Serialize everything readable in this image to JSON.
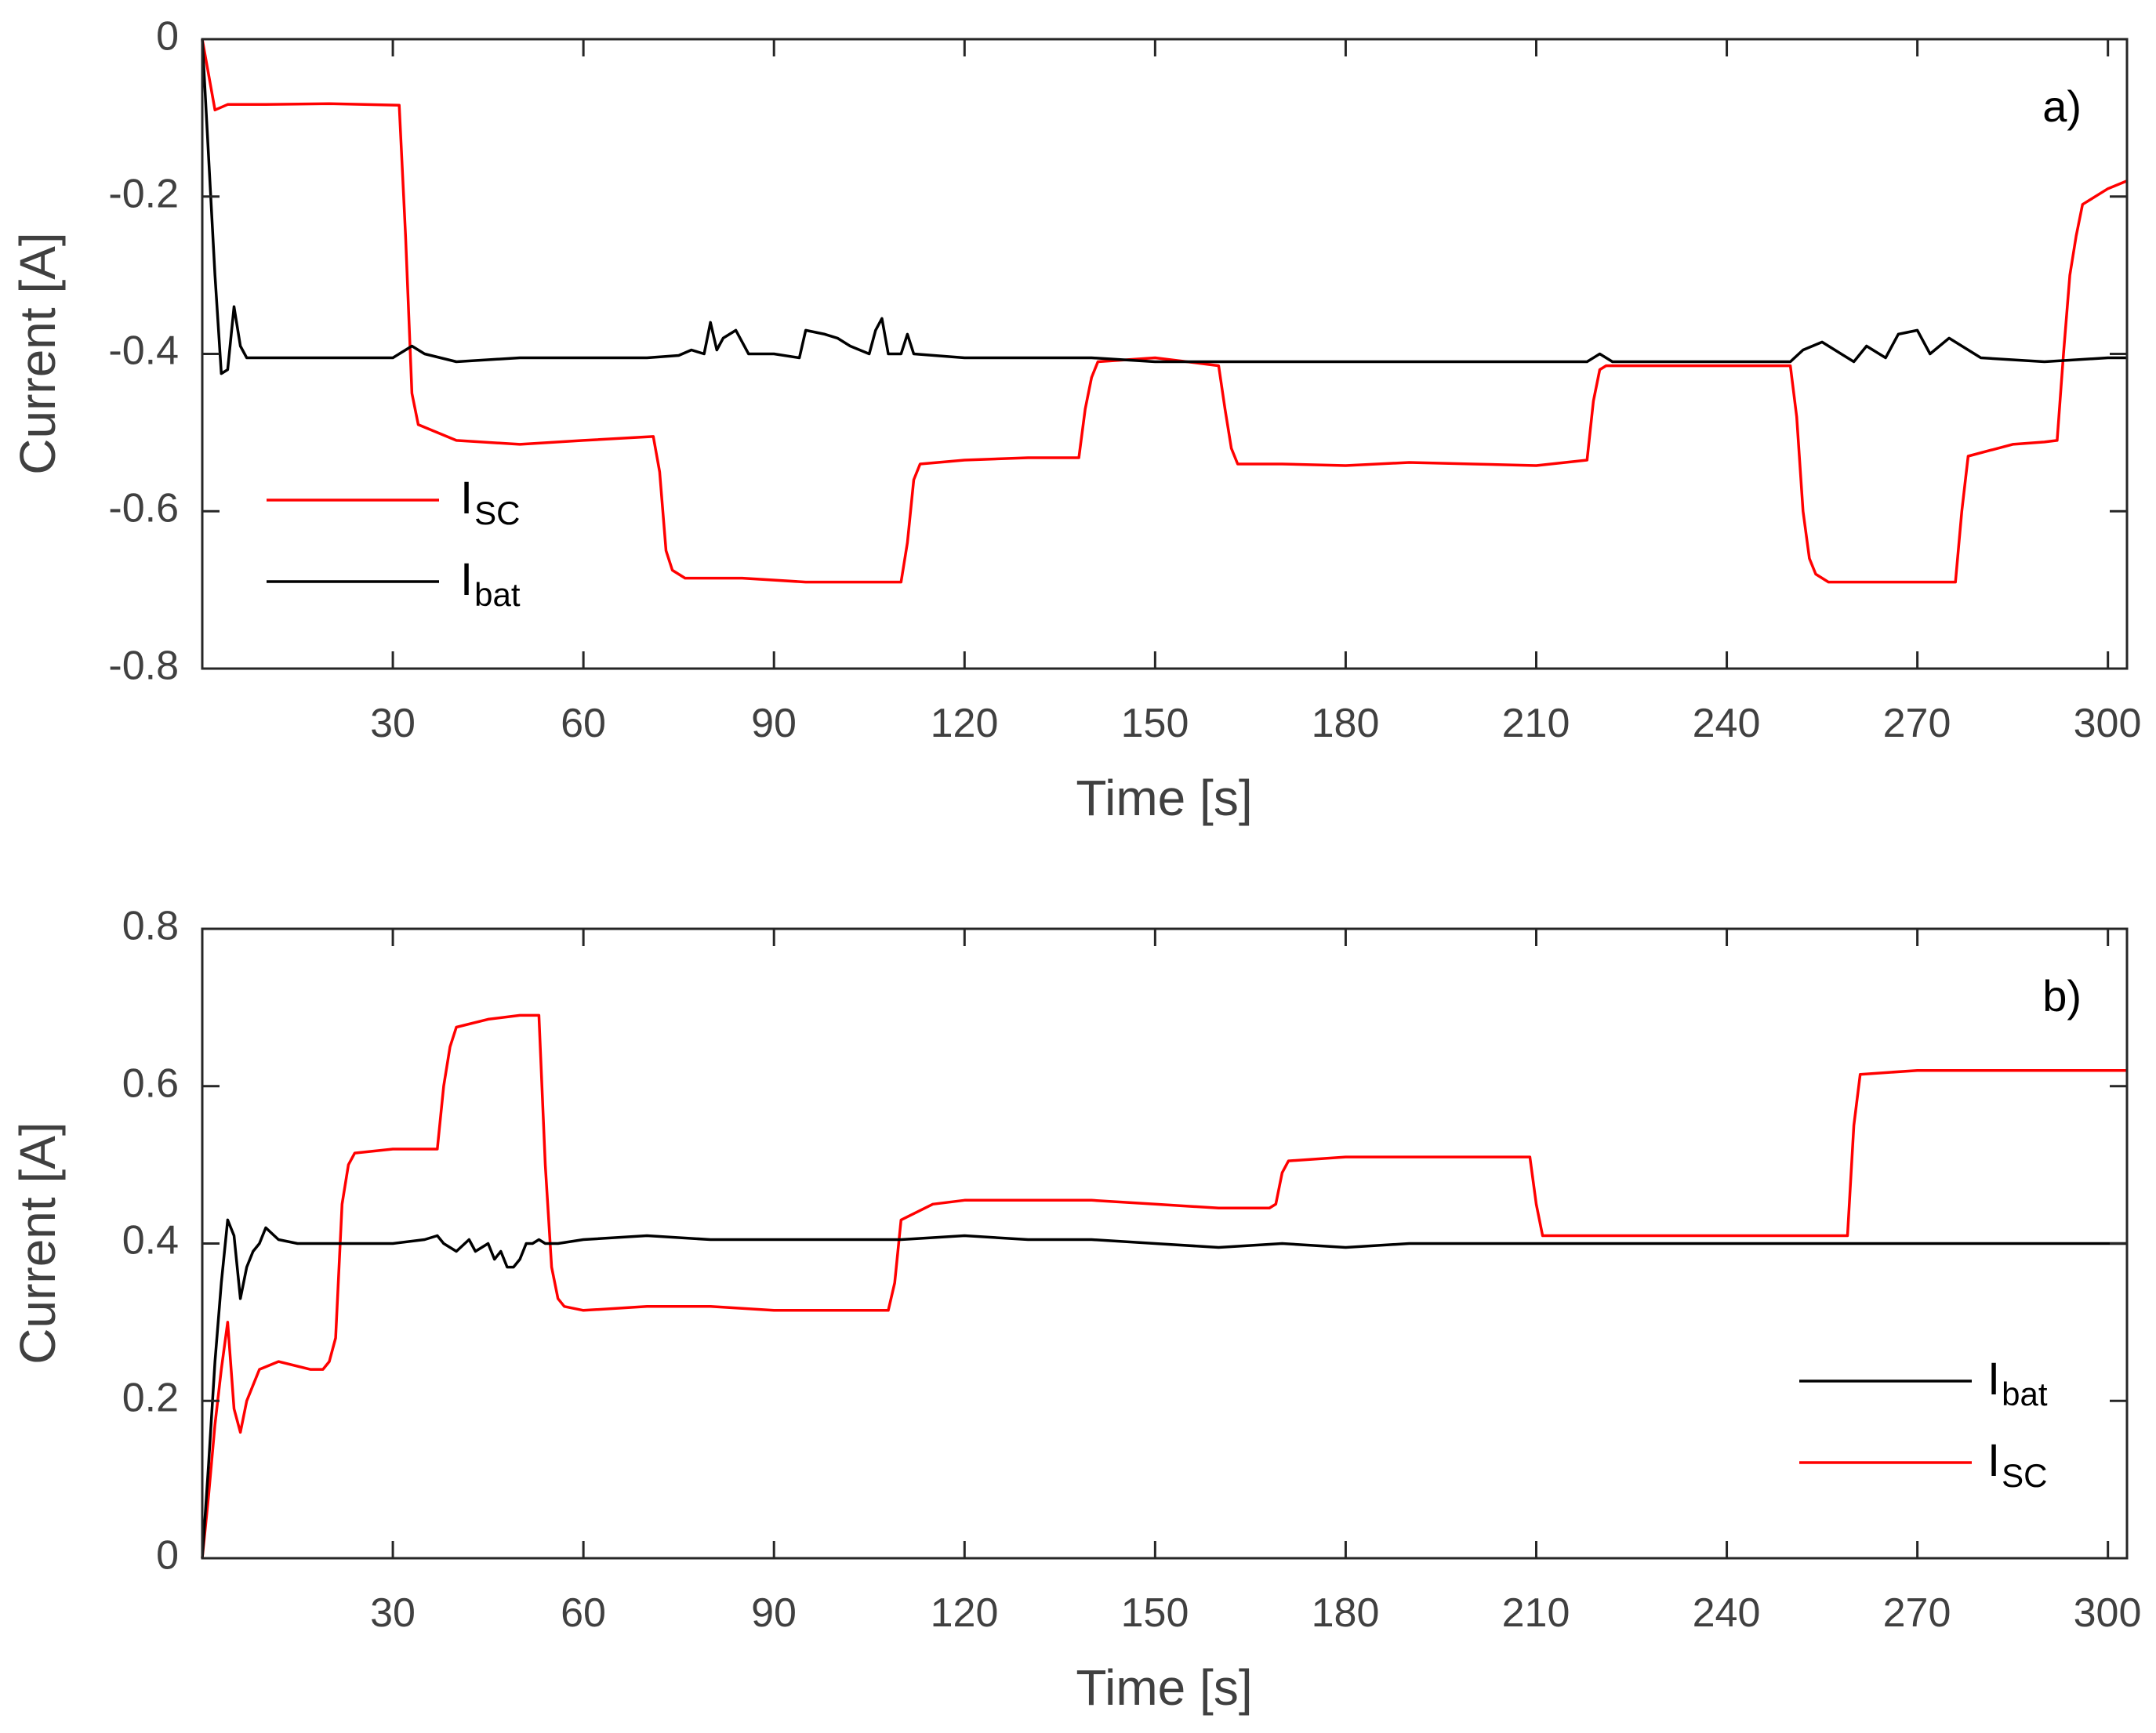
{
  "chart_data": [
    {
      "type": "line",
      "panel_label": "a)",
      "xlabel": "Time [s]",
      "ylabel": "Current [A]",
      "xlim": [
        0,
        303
      ],
      "ylim": [
        -0.8,
        0
      ],
      "xticks": [
        30,
        60,
        90,
        120,
        150,
        180,
        210,
        240,
        270,
        300
      ],
      "xtick_labels": [
        "30",
        "60",
        "90",
        "120",
        "150",
        "180",
        "210",
        "240",
        "270",
        "300"
      ],
      "yticks": [
        0,
        -0.2,
        -0.4,
        -0.6,
        -0.8
      ],
      "ytick_labels": [
        "0",
        "-0.2",
        "-0.4",
        "-0.6",
        "-0.8"
      ],
      "grid": false,
      "legend_position": "left",
      "legend": [
        {
          "main": "I",
          "sub": "SC",
          "color": "#ff0000"
        },
        {
          "main": "I",
          "sub": "bat",
          "color": "#000000"
        }
      ],
      "series": [
        {
          "name": "ISC",
          "color": "#ff0000",
          "x": [
            0,
            2,
            4,
            10,
            20,
            31,
            32,
            33,
            34,
            40,
            50,
            60,
            71,
            72,
            73,
            74,
            76,
            85,
            95,
            105,
            110,
            111,
            112,
            113,
            120,
            130,
            138,
            139,
            140,
            141,
            150,
            155,
            160,
            161,
            162,
            163,
            170,
            180,
            190,
            200,
            210,
            218,
            219,
            220,
            221,
            230,
            240,
            250,
            251,
            252,
            253,
            254,
            256,
            265,
            275,
            276,
            277,
            278,
            285,
            290,
            292,
            293,
            294,
            295,
            296,
            300,
            303
          ],
          "values": [
            0,
            -0.09,
            -0.083,
            -0.083,
            -0.082,
            -0.084,
            -0.25,
            -0.45,
            -0.49,
            -0.51,
            -0.515,
            -0.51,
            -0.505,
            -0.55,
            -0.65,
            -0.675,
            -0.685,
            -0.685,
            -0.69,
            -0.69,
            -0.69,
            -0.64,
            -0.56,
            -0.54,
            -0.535,
            -0.532,
            -0.532,
            -0.47,
            -0.43,
            -0.41,
            -0.405,
            -0.41,
            -0.415,
            -0.47,
            -0.52,
            -0.54,
            -0.54,
            -0.542,
            -0.538,
            -0.54,
            -0.542,
            -0.535,
            -0.46,
            -0.42,
            -0.415,
            -0.415,
            -0.415,
            -0.415,
            -0.48,
            -0.6,
            -0.66,
            -0.68,
            -0.69,
            -0.69,
            -0.69,
            -0.69,
            -0.6,
            -0.53,
            -0.515,
            -0.512,
            -0.51,
            -0.4,
            -0.3,
            -0.25,
            -0.21,
            -0.19,
            -0.18
          ]
        },
        {
          "name": "Ibat",
          "color": "#000000",
          "x": [
            0,
            1,
            2,
            3,
            4,
            5,
            6,
            7,
            10,
            20,
            30,
            32,
            33,
            35,
            40,
            50,
            60,
            70,
            75,
            77,
            79,
            80,
            81,
            82,
            84,
            86,
            90,
            94,
            95,
            98,
            100,
            102,
            105,
            106,
            107,
            108,
            110,
            111,
            112,
            120,
            130,
            140,
            150,
            160,
            170,
            180,
            190,
            200,
            210,
            218,
            220,
            222,
            230,
            240,
            250,
            252,
            255,
            258,
            260,
            262,
            265,
            267,
            270,
            272,
            275,
            280,
            290,
            300,
            303
          ],
          "values": [
            0,
            -0.15,
            -0.3,
            -0.425,
            -0.42,
            -0.34,
            -0.39,
            -0.405,
            -0.405,
            -0.405,
            -0.405,
            -0.395,
            -0.39,
            -0.4,
            -0.41,
            -0.405,
            -0.405,
            -0.405,
            -0.402,
            -0.395,
            -0.4,
            -0.36,
            -0.395,
            -0.38,
            -0.37,
            -0.4,
            -0.4,
            -0.405,
            -0.37,
            -0.375,
            -0.38,
            -0.39,
            -0.4,
            -0.37,
            -0.355,
            -0.4,
            -0.4,
            -0.375,
            -0.4,
            -0.405,
            -0.405,
            -0.405,
            -0.41,
            -0.41,
            -0.41,
            -0.41,
            -0.41,
            -0.41,
            -0.41,
            -0.41,
            -0.4,
            -0.41,
            -0.41,
            -0.41,
            -0.41,
            -0.395,
            -0.385,
            -0.4,
            -0.41,
            -0.39,
            -0.405,
            -0.375,
            -0.37,
            -0.4,
            -0.38,
            -0.405,
            -0.41,
            -0.405,
            -0.405
          ]
        }
      ]
    },
    {
      "type": "line",
      "panel_label": "b)",
      "xlabel": "Time [s]",
      "ylabel": "Current [A]",
      "xlim": [
        0,
        303
      ],
      "ylim": [
        0,
        0.8
      ],
      "xticks": [
        30,
        60,
        90,
        120,
        150,
        180,
        210,
        240,
        270,
        300
      ],
      "xtick_labels": [
        "30",
        "60",
        "90",
        "120",
        "150",
        "180",
        "210",
        "240",
        "270",
        "300"
      ],
      "yticks": [
        0,
        0.2,
        0.4,
        0.6,
        0.8
      ],
      "ytick_labels": [
        "0",
        "0.2",
        "0.4",
        "0.6",
        "0.8"
      ],
      "grid": false,
      "legend_position": "bottom-right",
      "legend": [
        {
          "main": "I",
          "sub": "bat",
          "color": "#000000"
        },
        {
          "main": "I",
          "sub": "SC",
          "color": "#ff0000"
        }
      ],
      "series": [
        {
          "name": "ISC",
          "color": "#ff0000",
          "x": [
            0,
            1,
            2,
            3,
            4,
            5,
            6,
            7,
            8,
            9,
            12,
            17,
            19,
            20,
            21,
            22,
            23,
            24,
            30,
            36,
            37,
            38,
            39,
            40,
            45,
            50,
            52,
            53,
            54,
            55,
            56,
            57,
            60,
            70,
            80,
            90,
            100,
            107,
            108,
            109,
            110,
            115,
            120,
            130,
            140,
            150,
            160,
            168,
            169,
            170,
            171,
            180,
            190,
            200,
            208,
            209,
            210,
            211,
            220,
            230,
            240,
            250,
            258,
            259,
            260,
            261,
            270,
            280,
            290,
            300,
            303
          ],
          "values": [
            0,
            0.08,
            0.17,
            0.24,
            0.3,
            0.19,
            0.16,
            0.2,
            0.22,
            0.24,
            0.25,
            0.24,
            0.24,
            0.25,
            0.28,
            0.45,
            0.5,
            0.515,
            0.52,
            0.52,
            0.52,
            0.6,
            0.65,
            0.675,
            0.685,
            0.69,
            0.69,
            0.69,
            0.5,
            0.37,
            0.33,
            0.32,
            0.315,
            0.32,
            0.32,
            0.315,
            0.315,
            0.315,
            0.315,
            0.35,
            0.43,
            0.45,
            0.455,
            0.455,
            0.455,
            0.45,
            0.445,
            0.445,
            0.45,
            0.49,
            0.505,
            0.51,
            0.51,
            0.51,
            0.51,
            0.51,
            0.45,
            0.41,
            0.41,
            0.41,
            0.41,
            0.41,
            0.41,
            0.41,
            0.55,
            0.615,
            0.62,
            0.62,
            0.62,
            0.62,
            0.62
          ]
        },
        {
          "name": "Ibat",
          "color": "#000000",
          "x": [
            0,
            1,
            2,
            3,
            4,
            5,
            6,
            7,
            8,
            9,
            10,
            12,
            15,
            20,
            30,
            35,
            37,
            38,
            40,
            42,
            43,
            45,
            46,
            47,
            48,
            49,
            50,
            51,
            52,
            53,
            54,
            56,
            60,
            70,
            80,
            90,
            100,
            110,
            120,
            130,
            140,
            150,
            160,
            170,
            180,
            190,
            200,
            210,
            220,
            230,
            240,
            250,
            260,
            270,
            280,
            290,
            300,
            303
          ],
          "values": [
            0,
            0.12,
            0.25,
            0.35,
            0.43,
            0.41,
            0.33,
            0.37,
            0.39,
            0.4,
            0.42,
            0.405,
            0.4,
            0.4,
            0.4,
            0.405,
            0.41,
            0.4,
            0.39,
            0.405,
            0.39,
            0.4,
            0.38,
            0.39,
            0.37,
            0.37,
            0.38,
            0.4,
            0.4,
            0.405,
            0.4,
            0.4,
            0.405,
            0.41,
            0.405,
            0.405,
            0.405,
            0.405,
            0.41,
            0.405,
            0.405,
            0.4,
            0.395,
            0.4,
            0.395,
            0.4,
            0.4,
            0.4,
            0.4,
            0.4,
            0.4,
            0.4,
            0.4,
            0.4,
            0.4,
            0.4,
            0.4,
            0.4
          ]
        }
      ]
    }
  ]
}
